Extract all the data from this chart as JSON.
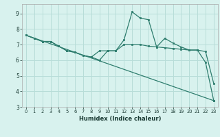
{
  "title": "",
  "xlabel": "Humidex (Indice chaleur)",
  "background_color": "#d8f2ee",
  "grid_color": "#b8ddd8",
  "line_color": "#2e7d6e",
  "xlim": [
    -0.5,
    23.5
  ],
  "ylim": [
    3,
    9.6
  ],
  "yticks": [
    3,
    4,
    5,
    6,
    7,
    8,
    9
  ],
  "xticks": [
    0,
    1,
    2,
    3,
    4,
    5,
    6,
    7,
    8,
    9,
    10,
    11,
    12,
    13,
    14,
    15,
    16,
    17,
    18,
    19,
    20,
    21,
    22,
    23
  ],
  "series": [
    {
      "x": [
        0,
        1,
        2,
        3,
        4,
        5,
        6,
        7,
        8,
        9,
        10,
        11,
        12,
        13,
        14,
        15,
        16,
        17,
        18,
        19,
        20,
        21,
        22,
        23
      ],
      "y": [
        7.6,
        7.4,
        7.2,
        7.2,
        6.9,
        6.6,
        6.5,
        6.3,
        6.2,
        6.0,
        6.6,
        6.6,
        7.3,
        9.1,
        8.7,
        8.6,
        6.85,
        7.4,
        7.1,
        6.85,
        6.65,
        6.65,
        5.85,
        3.4
      ]
    },
    {
      "x": [
        0,
        1,
        2,
        3,
        4,
        5,
        6,
        7,
        8,
        9,
        10,
        11,
        12,
        13,
        14,
        15,
        16,
        17,
        18,
        19,
        20,
        21,
        22,
        23
      ],
      "y": [
        7.6,
        7.4,
        7.2,
        7.2,
        6.9,
        6.6,
        6.5,
        6.3,
        6.2,
        6.6,
        6.6,
        6.6,
        7.0,
        7.0,
        7.0,
        6.9,
        6.85,
        6.8,
        6.75,
        6.7,
        6.65,
        6.65,
        6.55,
        4.5
      ]
    },
    {
      "x": [
        0,
        23
      ],
      "y": [
        7.6,
        3.4
      ]
    }
  ]
}
